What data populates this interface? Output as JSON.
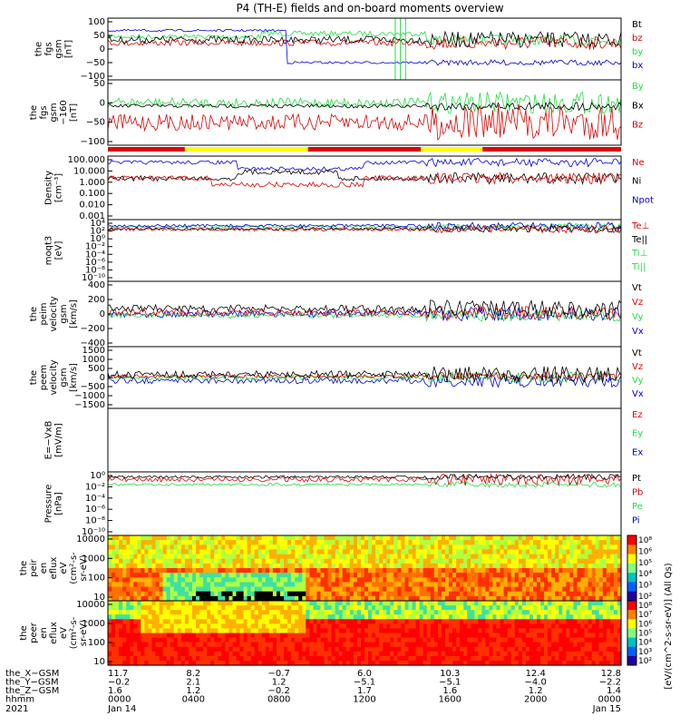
{
  "title": "P4 (TH-E) fields and on-board moments overview",
  "colors": {
    "black": "#000000",
    "red": "#e00000",
    "green": "#20e040",
    "blue": "#0000e0",
    "yellow": "#ffff00",
    "modebar_red": "#e00000"
  },
  "chart_data": [
    {
      "type": "line",
      "ylabel": [
        "the",
        "fgs",
        "gsm",
        "[nT]"
      ],
      "ylim": [
        -100,
        100
      ],
      "yticks": [
        "100",
        "50",
        "0",
        "−50",
        "−100"
      ],
      "legend": [
        {
          "name": "Bt",
          "color": "black"
        },
        {
          "name": "bz",
          "color": "red"
        },
        {
          "name": "by",
          "color": "green"
        },
        {
          "name": "bx",
          "color": "blue"
        }
      ]
    },
    {
      "type": "line",
      "ylabel": [
        "the",
        "fgs",
        "gsm",
        "−160",
        "[nT]"
      ],
      "ylim": [
        -130,
        60
      ],
      "yticks": [
        "50",
        "0",
        "−50",
        "−100"
      ],
      "legend": [
        {
          "name": "By",
          "color": "green"
        },
        {
          "name": "Bx",
          "color": "black"
        },
        {
          "name": "Bz",
          "color": "red"
        }
      ]
    },
    {
      "type": "line",
      "ylabel": [
        "Density",
        "[cm⁻³]"
      ],
      "ylim": [
        0.001,
        100000
      ],
      "log": true,
      "yticks": [
        "100.000",
        "10.000",
        "1.000",
        "0.100",
        "0.010",
        "0.001"
      ],
      "legend": [
        {
          "name": "Ne",
          "color": "red"
        },
        {
          "name": "Ni",
          "color": "black"
        },
        {
          "name": "Npot",
          "color": "blue"
        }
      ]
    },
    {
      "type": "line",
      "ylabel": [
        "moqt3",
        "[eV]"
      ],
      "log": true,
      "yticks": [
        "10⁴",
        "10²",
        "10⁰",
        "10⁻²",
        "10⁻⁴",
        "10⁻⁶",
        "10⁻⁸",
        "10⁻¹⁰"
      ],
      "legend": [
        {
          "name": "Te⊥",
          "color": "red"
        },
        {
          "name": "Te||",
          "color": "black"
        },
        {
          "name": "Ti⊥",
          "color": "green"
        },
        {
          "name": "Ti||",
          "color": "green"
        }
      ]
    },
    {
      "type": "line",
      "ylabel": [
        "the",
        "peim",
        "velocity",
        "gsm",
        "[km/s]"
      ],
      "ylim": [
        -400,
        400
      ],
      "yticks": [
        "400",
        "200",
        "0",
        "−200",
        "−400"
      ],
      "legend": [
        {
          "name": "Vt",
          "color": "black"
        },
        {
          "name": "Vz",
          "color": "red"
        },
        {
          "name": "Vy",
          "color": "green"
        },
        {
          "name": "Vx",
          "color": "blue"
        }
      ]
    },
    {
      "type": "line",
      "ylabel": [
        "the",
        "peem",
        "velocity",
        "gsm",
        "[km/s]"
      ],
      "ylim": [
        -1500,
        1500
      ],
      "yticks": [
        "1500",
        "1000",
        "500",
        "0",
        "−500",
        "−1000",
        "−1500"
      ],
      "legend": [
        {
          "name": "Vt",
          "color": "black"
        },
        {
          "name": "Vz",
          "color": "red"
        },
        {
          "name": "Vy",
          "color": "green"
        },
        {
          "name": "Vx",
          "color": "blue"
        }
      ]
    },
    {
      "type": "line",
      "ylabel": [
        "E=−VxB",
        "[mV/m]"
      ],
      "yticks": [],
      "legend": [
        {
          "name": "Ez",
          "color": "red"
        },
        {
          "name": "Ey",
          "color": "green"
        },
        {
          "name": "Ex",
          "color": "blue"
        }
      ]
    },
    {
      "type": "line",
      "ylabel": [
        "Pressure",
        "[nPa]"
      ],
      "log": true,
      "yticks": [
        "10⁰",
        "10⁻²",
        "10⁻⁴",
        "10⁻⁶",
        "10⁻⁸",
        "10⁻¹⁰"
      ],
      "legend": [
        {
          "name": "Pt",
          "color": "black"
        },
        {
          "name": "Pb",
          "color": "red"
        },
        {
          "name": "Pe",
          "color": "green"
        },
        {
          "name": "Pi",
          "color": "blue"
        }
      ]
    },
    {
      "type": "heatmap",
      "ylabel": [
        "the",
        "peir",
        "en",
        "eflux",
        "eV",
        "(cm²-s-",
        "sr-eV)"
      ],
      "log": true,
      "yticks": [
        "10000",
        "1000",
        "100",
        "10"
      ],
      "colorbar": {
        "ticks": [
          "10⁸",
          "10⁶",
          "10⁵",
          "10⁴",
          "10³",
          "10²"
        ]
      }
    },
    {
      "type": "heatmap",
      "ylabel": [
        "the",
        "peer",
        "en",
        "eflux",
        "eV",
        "(cm²-s-",
        "sr-eV)"
      ],
      "log": true,
      "yticks": [
        "10000",
        "1000",
        "100",
        "10"
      ],
      "colorbar": {
        "ticks": [
          "10⁸",
          "10⁷",
          "10⁶",
          "10⁵",
          "10⁴",
          "10³",
          "10²"
        ]
      }
    }
  ],
  "colorbar_label": "[eV/(cm^2-s-sr-eV)] (All Qs)",
  "xaxis": {
    "rows": [
      {
        "label": "the_X−GSM",
        "values": [
          "11.7",
          "8.2",
          "−0.7",
          "6.0",
          "10.3",
          "12.4",
          "12.8"
        ]
      },
      {
        "label": "the_Y−GSM",
        "values": [
          "−0.2",
          "2.1",
          "1.2",
          "−5.1",
          "−5.1",
          "−4.0",
          "−2.2"
        ]
      },
      {
        "label": "the_Z−GSM",
        "values": [
          "1.6",
          "1.2",
          "−0.2",
          "1.7",
          "1.6",
          "1.2",
          "1.4"
        ]
      },
      {
        "label": "hhmm",
        "values": [
          "0000",
          "0400",
          "0800",
          "1200",
          "1600",
          "2000",
          "0000"
        ]
      }
    ],
    "year": "2021",
    "date_start": "Jan 14",
    "date_end": "Jan 15"
  }
}
